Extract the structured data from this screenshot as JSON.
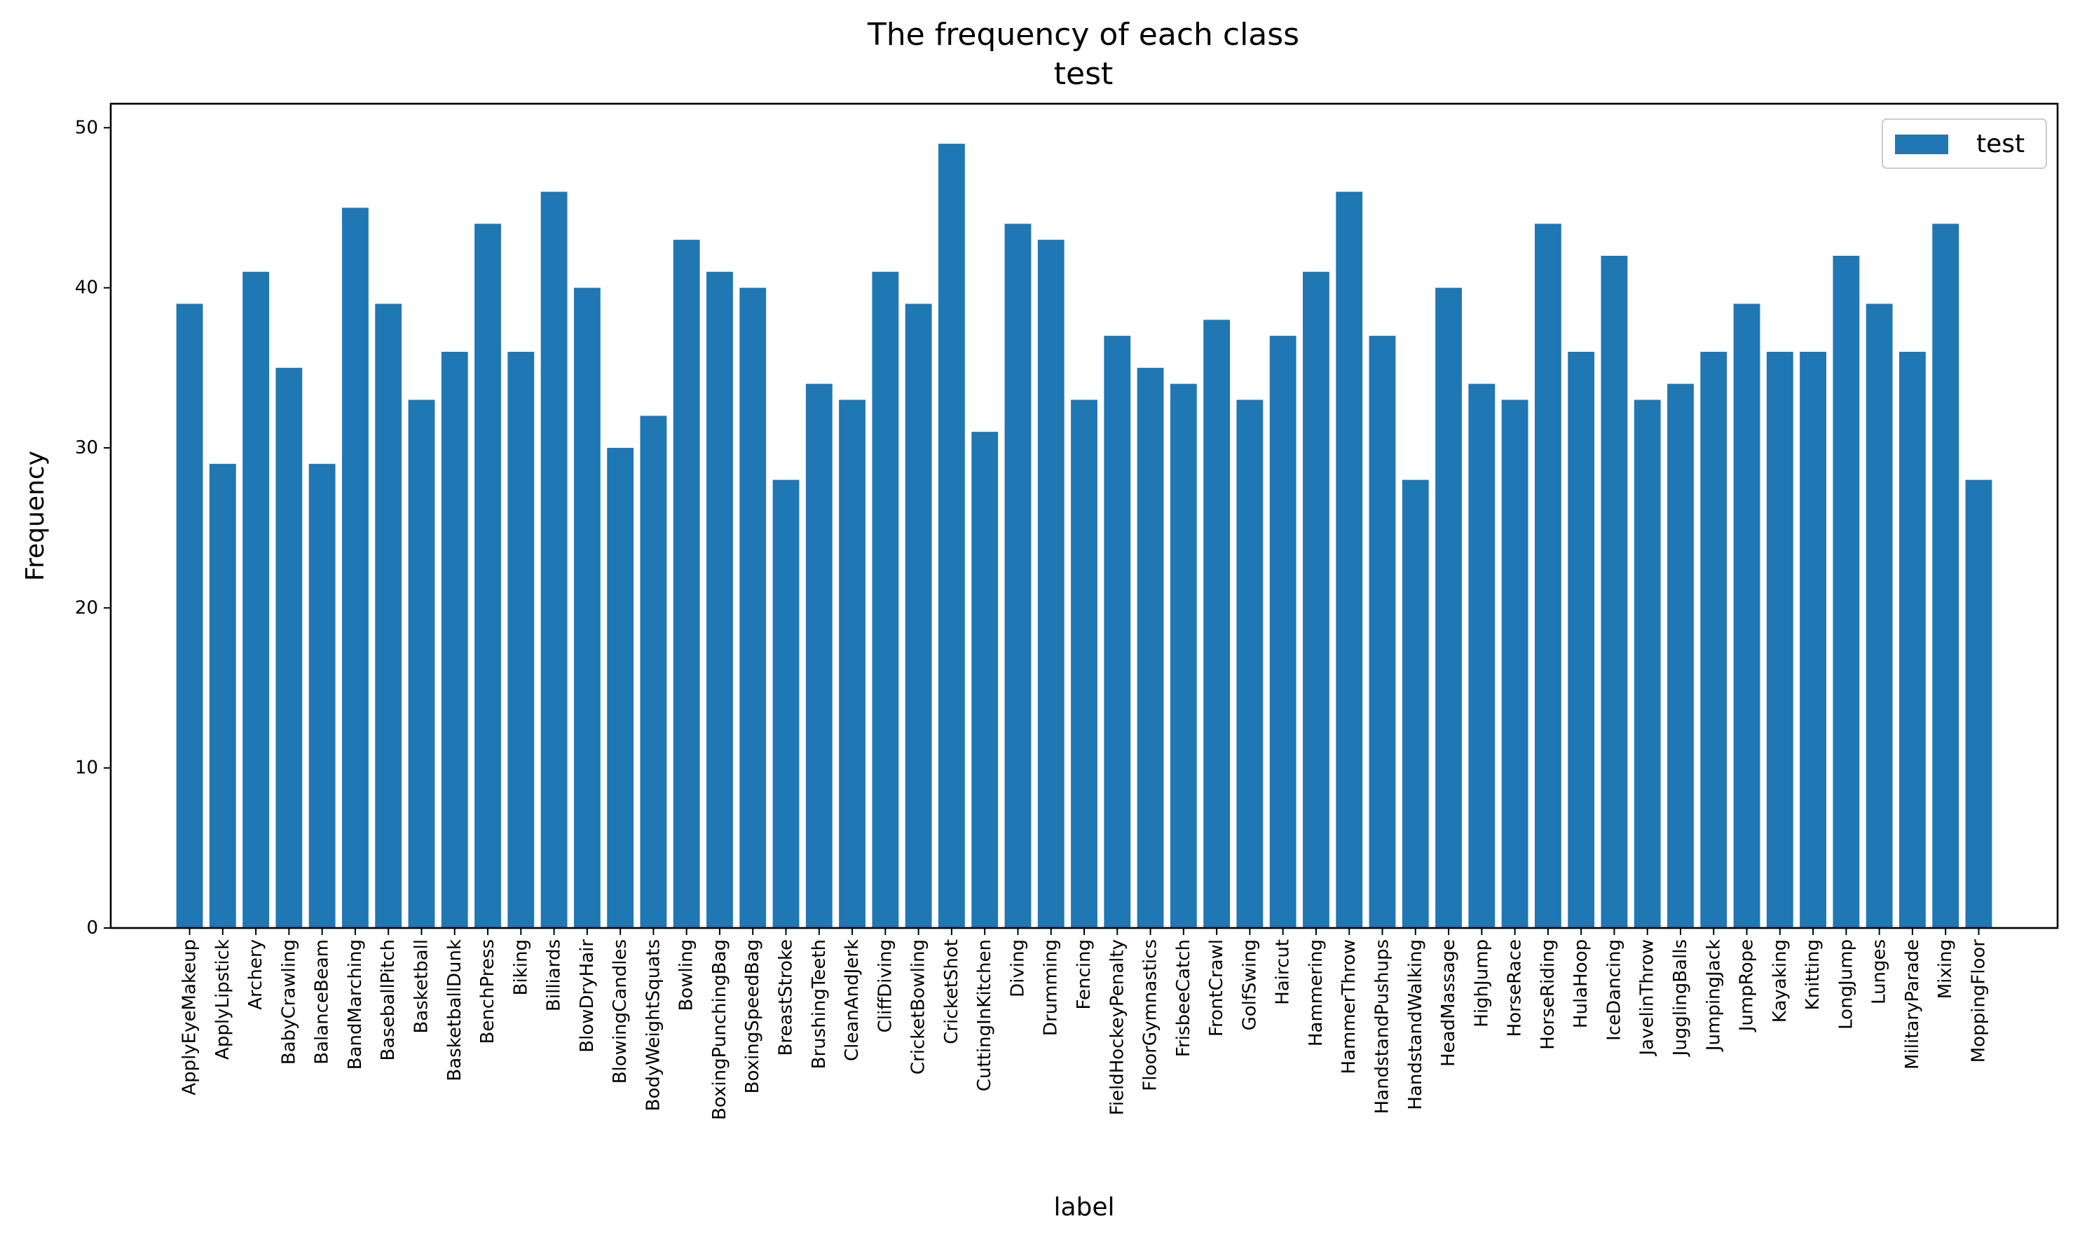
{
  "chart_data": {
    "type": "bar",
    "title": "The frequency of each class",
    "subtitle": "test",
    "xlabel": "label",
    "ylabel": "Frequency",
    "ylim": [
      0,
      51.5
    ],
    "yticks": [
      0,
      10,
      20,
      30,
      40,
      50
    ],
    "legend": {
      "placement": "top-right",
      "entries": [
        "test"
      ]
    },
    "grid": false,
    "colors": {
      "bar": "#1f77b4"
    },
    "categories": [
      "ApplyEyeMakeup",
      "ApplyLipstick",
      "Archery",
      "BabyCrawling",
      "BalanceBeam",
      "BandMarching",
      "BaseballPitch",
      "Basketball",
      "BasketballDunk",
      "BenchPress",
      "Biking",
      "Billiards",
      "BlowDryHair",
      "BlowingCandles",
      "BodyWeightSquats",
      "Bowling",
      "BoxingPunchingBag",
      "BoxingSpeedBag",
      "BreastStroke",
      "BrushingTeeth",
      "CleanAndJerk",
      "CliffDiving",
      "CricketBowling",
      "CricketShot",
      "CuttingInKitchen",
      "Diving",
      "Drumming",
      "Fencing",
      "FieldHockeyPenalty",
      "FloorGymnastics",
      "FrisbeeCatch",
      "FrontCrawl",
      "GolfSwing",
      "Haircut",
      "Hammering",
      "HammerThrow",
      "HandstandPushups",
      "HandstandWalking",
      "HeadMassage",
      "HighJump",
      "HorseRace",
      "HorseRiding",
      "HulaHoop",
      "IceDancing",
      "JavelinThrow",
      "JugglingBalls",
      "JumpingJack",
      "JumpRope",
      "Kayaking",
      "Knitting",
      "LongJump",
      "Lunges",
      "MilitaryParade",
      "Mixing",
      "MoppingFloor"
    ],
    "series": [
      {
        "name": "test",
        "values": [
          39,
          29,
          41,
          35,
          29,
          45,
          39,
          33,
          36,
          44,
          36,
          46,
          40,
          30,
          32,
          43,
          41,
          40,
          28,
          34,
          33,
          41,
          39,
          49,
          31,
          44,
          43,
          33,
          37,
          35,
          34,
          38,
          33,
          37,
          41,
          46,
          37,
          28,
          40,
          34,
          33,
          44,
          36,
          42,
          33,
          34,
          36,
          39,
          36,
          36,
          42,
          39,
          36,
          44,
          28
        ]
      }
    ]
  }
}
